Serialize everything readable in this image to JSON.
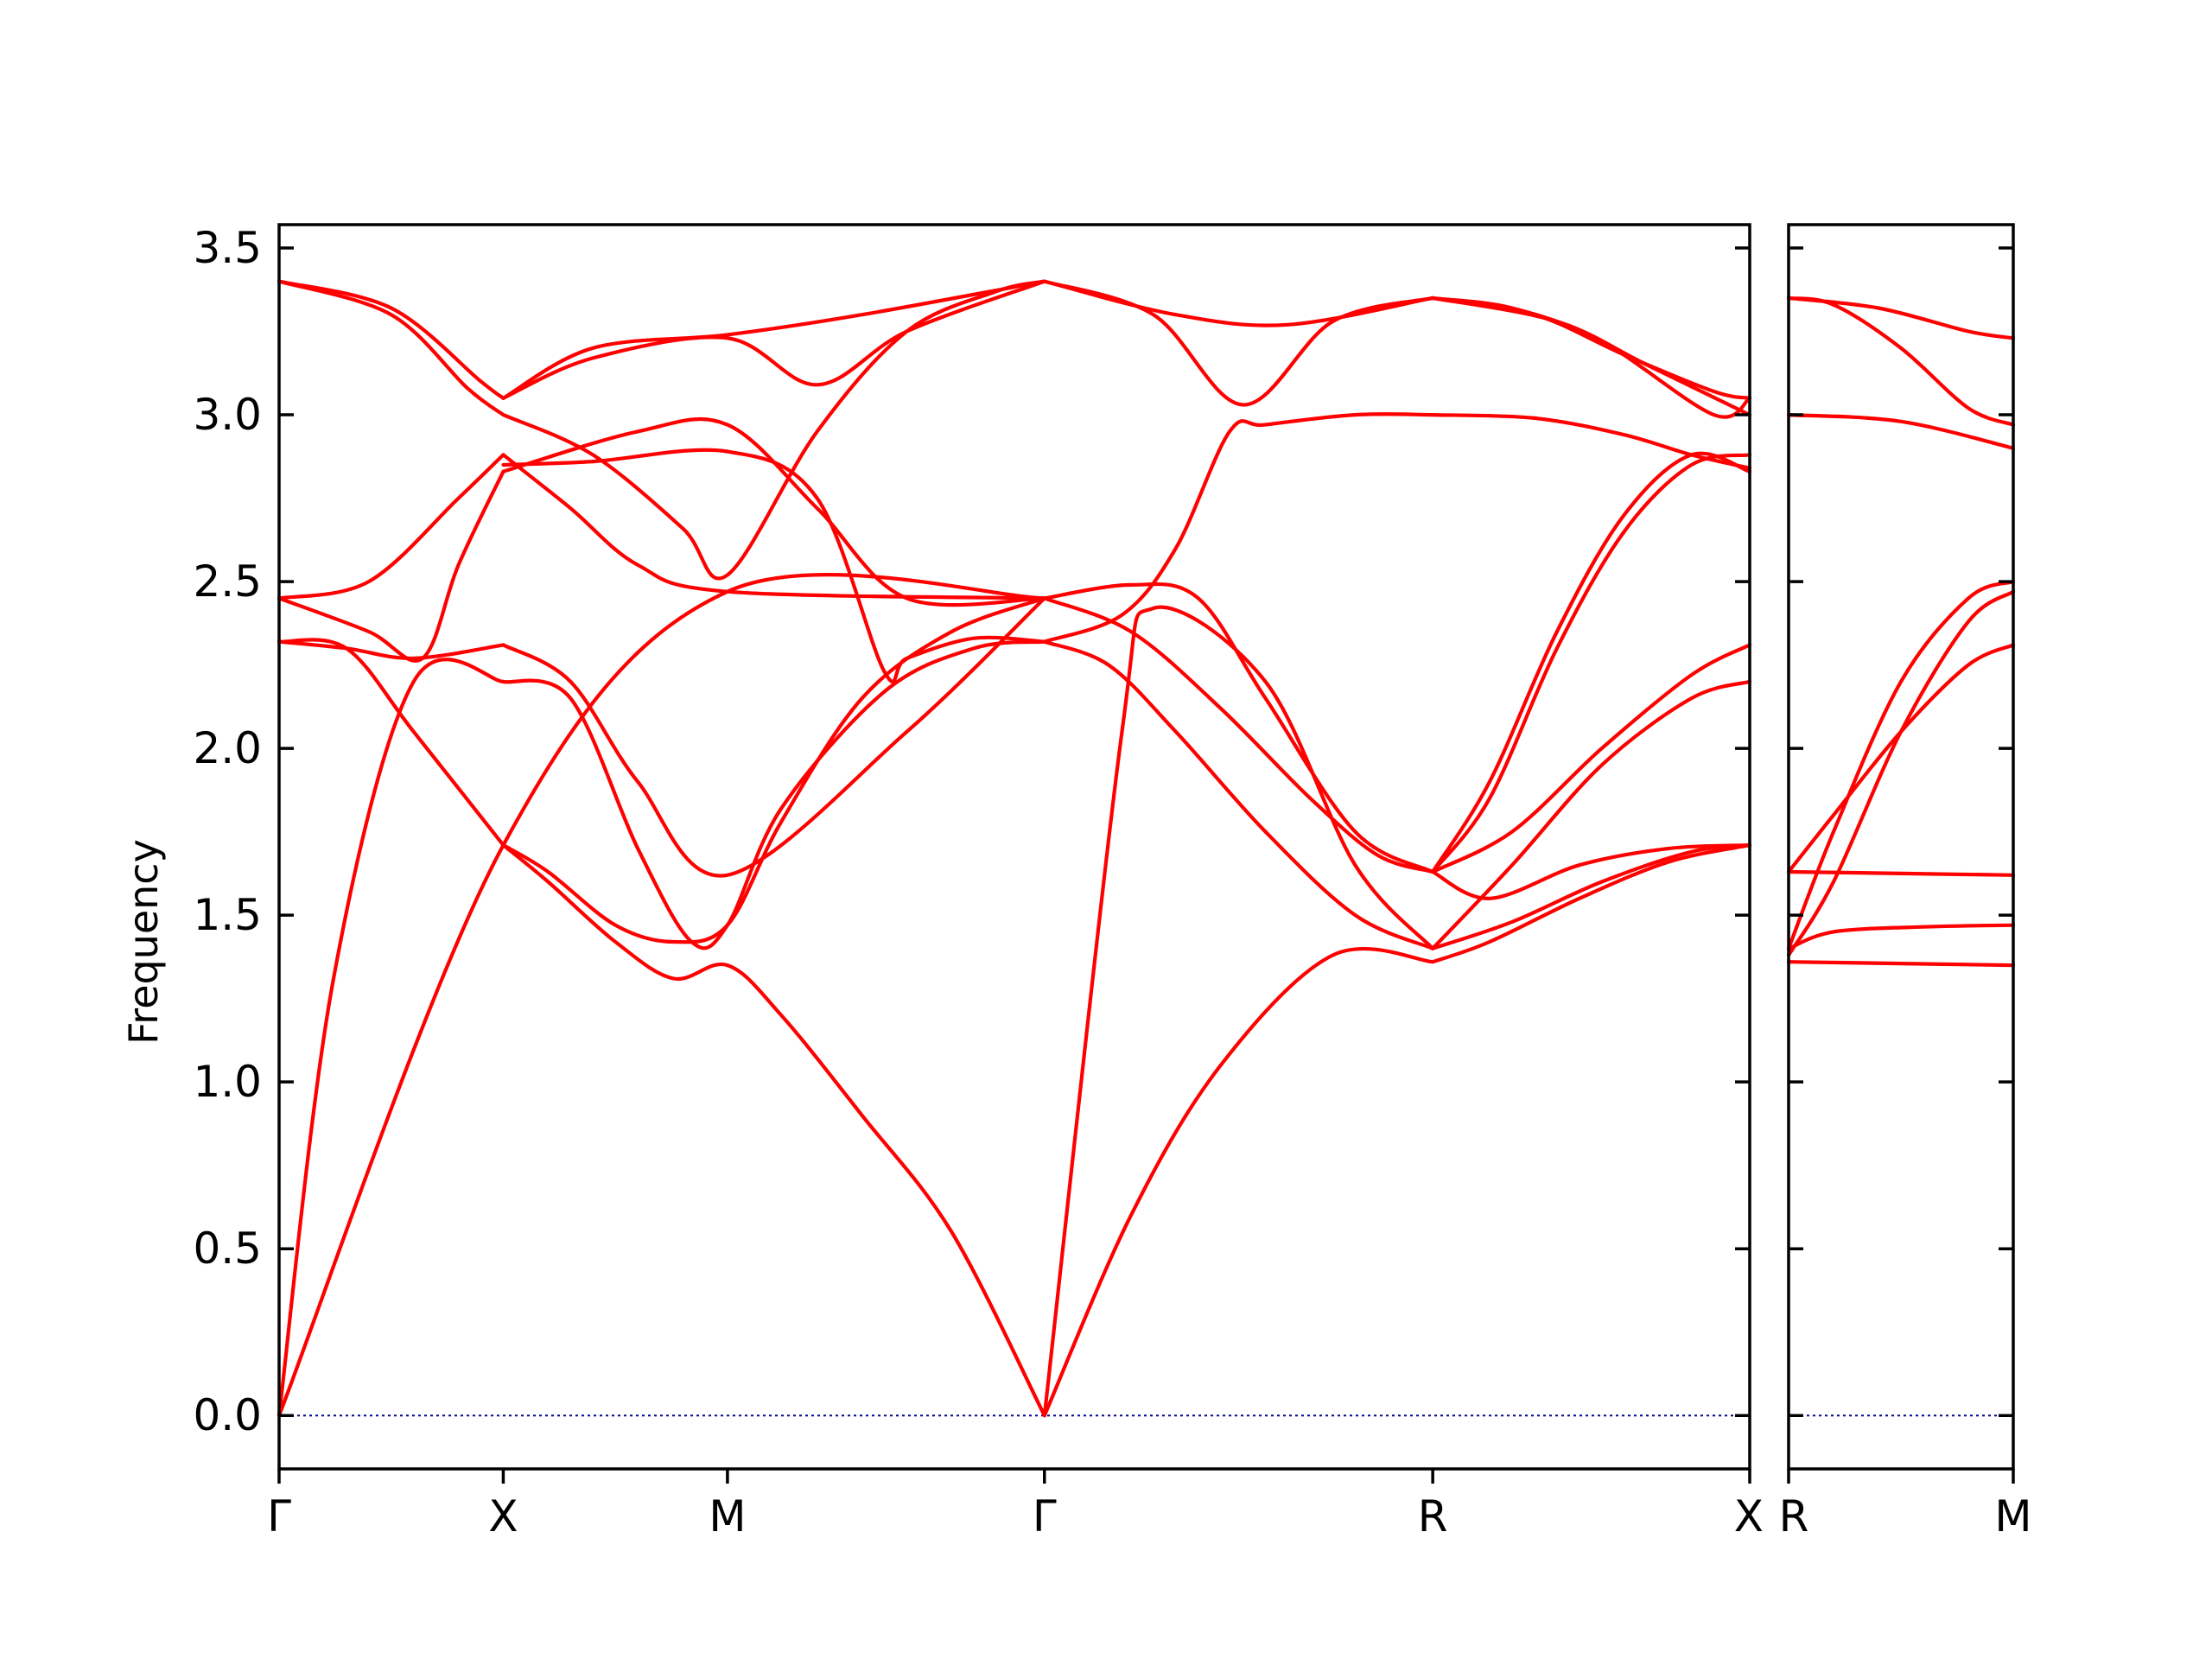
{
  "chart_data": {
    "type": "line",
    "ylabel": "Frequency",
    "ylim": [
      -0.16,
      3.57
    ],
    "yticks": [
      "0.0",
      "0.5",
      "1.0",
      "1.5",
      "2.0",
      "2.5",
      "3.0",
      "3.5"
    ],
    "ytick_values": [
      0.0,
      0.5,
      1.0,
      1.5,
      2.0,
      2.5,
      3.0,
      3.5
    ],
    "line_color": "#ff0000",
    "zero_line_color": "#00008b",
    "panels": [
      {
        "name": "Γ-X-M-Γ-R-X",
        "kpoints": [
          {
            "label": "Γ",
            "x": 0.0
          },
          {
            "label": "X",
            "x": 0.5
          },
          {
            "label": "M",
            "x": 1.0
          },
          {
            "label": "Γ",
            "x": 1.707
          },
          {
            "label": "R",
            "x": 2.573
          },
          {
            "label": "X",
            "x": 3.28
          }
        ],
        "xlim": [
          0.0,
          3.28
        ],
        "bands": [
          {
            "x": [
              0.0,
              0.5,
              1.0,
              1.707
            ],
            "y": [
              0.0,
              1.71,
              2.47,
              2.45
            ]
          },
          {
            "x": [
              0.0,
              0.12,
              0.3,
              0.5
            ],
            "y": [
              0.0,
              1.3,
              2.2,
              2.2
            ]
          },
          {
            "x": [
              0.5,
              0.65,
              0.8,
              0.92,
              1.0,
              1.12,
              1.35,
              1.55,
              1.707
            ],
            "y": [
              2.2,
              2.15,
              1.7,
              1.42,
              1.47,
              1.82,
              2.17,
              2.3,
              2.32
            ]
          },
          {
            "x": [
              0.0,
              0.15,
              0.3,
              0.5
            ],
            "y": [
              2.32,
              2.3,
              2.05,
              1.71
            ]
          },
          {
            "x": [
              0.5,
              0.6,
              0.75,
              0.88,
              1.0,
              1.12,
              1.3,
              1.5,
              1.707
            ],
            "y": [
              1.71,
              1.6,
              1.42,
              1.31,
              1.35,
              1.2,
              0.9,
              0.55,
              0.0
            ]
          },
          {
            "x": [
              0.5,
              0.6,
              0.75,
              0.88,
              1.0,
              1.12,
              1.3,
              1.5,
              1.707
            ],
            "y": [
              1.71,
              1.63,
              1.47,
              1.42,
              1.47,
              1.78,
              2.15,
              2.35,
              2.45
            ]
          },
          {
            "x": [
              0.0,
              0.15,
              0.3,
              0.5
            ],
            "y": [
              2.32,
              2.3,
              2.27,
              2.31
            ]
          },
          {
            "x": [
              0.5,
              0.65,
              0.8,
              1.0,
              1.4,
              1.707
            ],
            "y": [
              2.31,
              2.2,
              1.9,
              1.62,
              2.05,
              2.45
            ]
          },
          {
            "x": [
              0.0,
              0.2,
              0.32,
              0.4,
              0.5
            ],
            "y": [
              2.45,
              2.35,
              2.27,
              2.55,
              2.83
            ]
          },
          {
            "x": [
              0.5,
              0.8,
              1.0,
              1.2,
              1.4,
              1.707
            ],
            "y": [
              2.83,
              2.95,
              2.97,
              2.72,
              2.45,
              2.45
            ]
          },
          {
            "x": [
              0.0,
              0.2,
              0.4,
              0.5
            ],
            "y": [
              2.45,
              2.5,
              2.75,
              2.88
            ]
          },
          {
            "x": [
              0.5,
              0.65,
              0.8,
              1.0,
              1.707
            ],
            "y": [
              2.88,
              2.72,
              2.55,
              2.47,
              2.45
            ]
          },
          {
            "x": [
              0.5,
              0.7,
              1.0,
              1.2,
              1.35,
              1.4,
              1.55,
              1.707
            ],
            "y": [
              2.85,
              2.86,
              2.89,
              2.75,
              2.23,
              2.27,
              2.33,
              2.32
            ]
          },
          {
            "x": [
              0.0,
              0.25,
              0.42,
              0.5
            ],
            "y": [
              3.4,
              3.3,
              3.08,
              3.0
            ]
          },
          {
            "x": [
              0.5,
              0.7,
              0.9,
              1.0,
              1.2,
              1.4,
              1.6,
              1.707
            ],
            "y": [
              3.0,
              2.88,
              2.66,
              2.52,
              2.95,
              3.25,
              3.37,
              3.4
            ]
          },
          {
            "x": [
              0.0,
              0.25,
              0.45,
              0.5
            ],
            "y": [
              3.4,
              3.32,
              3.1,
              3.05
            ]
          },
          {
            "x": [
              0.5,
              0.7,
              1.0,
              1.2,
              1.4,
              1.707
            ],
            "y": [
              3.05,
              3.17,
              3.23,
              3.09,
              3.25,
              3.4
            ]
          },
          {
            "x": [
              0.5,
              0.7,
              1.0,
              1.3,
              1.707
            ],
            "y": [
              3.05,
              3.2,
              3.24,
              3.3,
              3.4
            ]
          },
          {
            "x": [
              1.707,
              1.9,
              2.1,
              2.35,
              2.573
            ],
            "y": [
              0.0,
              0.6,
              1.05,
              1.38,
              1.36
            ]
          },
          {
            "x": [
              1.707,
              1.88,
              1.95,
              2.2,
              2.4,
              2.573
            ],
            "y": [
              0.0,
              2.05,
              2.42,
              2.2,
              1.65,
              1.4
            ]
          },
          {
            "x": [
              1.707,
              1.85,
              2.0,
              2.2,
              2.4,
              2.573
            ],
            "y": [
              2.32,
              2.25,
              2.05,
              1.75,
              1.5,
              1.4
            ]
          },
          {
            "x": [
              1.707,
              1.9,
              2.1,
              2.3,
              2.45,
              2.573
            ],
            "y": [
              2.45,
              2.35,
              2.12,
              1.85,
              1.68,
              1.63
            ]
          },
          {
            "x": [
              1.707,
              1.9,
              2.05,
              2.2,
              2.4,
              2.573
            ],
            "y": [
              2.45,
              2.49,
              2.45,
              2.15,
              1.75,
              1.63
            ]
          },
          {
            "x": [
              1.707,
              1.88,
              2.0,
              2.12,
              2.2,
              2.4,
              2.573
            ],
            "y": [
              2.32,
              2.4,
              2.6,
              2.95,
              2.97,
              3.0,
              3.0
            ]
          },
          {
            "x": [
              1.707,
              1.95,
              2.15,
              2.35,
              2.573
            ],
            "y": [
              3.4,
              3.3,
              3.03,
              3.28,
              3.35
            ]
          },
          {
            "x": [
              1.707,
              2.0,
              2.25,
              2.573
            ],
            "y": [
              3.4,
              3.3,
              3.27,
              3.35
            ]
          },
          {
            "x": [
              2.573,
              2.7,
              2.9,
              3.1,
              3.28
            ],
            "y": [
              1.36,
              1.42,
              1.55,
              1.66,
              1.71
            ]
          },
          {
            "x": [
              2.573,
              2.75,
              2.95,
              3.15,
              3.28
            ],
            "y": [
              1.4,
              1.48,
              1.6,
              1.69,
              1.71
            ]
          },
          {
            "x": [
              2.573,
              2.7,
              2.9,
              3.1,
              3.28
            ],
            "y": [
              1.63,
              1.55,
              1.65,
              1.7,
              1.71
            ]
          },
          {
            "x": [
              2.573,
              2.75,
              2.95,
              3.15,
              3.28
            ],
            "y": [
              1.63,
              1.75,
              2.0,
              2.22,
              2.31
            ]
          },
          {
            "x": [
              2.573,
              2.75,
              2.95,
              3.15,
              3.28
            ],
            "y": [
              1.4,
              1.65,
              1.95,
              2.15,
              2.2
            ]
          },
          {
            "x": [
              2.573,
              2.7,
              2.85,
              3.0,
              3.15,
              3.28
            ],
            "y": [
              1.63,
              1.85,
              2.3,
              2.65,
              2.85,
              2.88
            ]
          },
          {
            "x": [
              2.573,
              2.7,
              2.85,
              3.0,
              3.15,
              3.28
            ],
            "y": [
              1.63,
              1.9,
              2.35,
              2.7,
              2.88,
              2.83
            ]
          },
          {
            "x": [
              2.573,
              2.8,
              3.0,
              3.15,
              3.28
            ],
            "y": [
              3.0,
              2.99,
              2.94,
              2.88,
              2.84
            ]
          },
          {
            "x": [
              2.573,
              2.75,
              2.95,
              3.2,
              3.28
            ],
            "y": [
              3.35,
              3.32,
              3.22,
              3.0,
              3.05
            ]
          },
          {
            "x": [
              2.573,
              2.8,
              3.0,
              3.2,
              3.28
            ],
            "y": [
              3.35,
              3.3,
              3.18,
              3.07,
              3.05
            ]
          },
          {
            "x": [
              2.573,
              2.85,
              3.05,
              3.28
            ],
            "y": [
              3.35,
              3.28,
              3.15,
              3.0
            ]
          }
        ]
      },
      {
        "name": "R-M",
        "kpoints": [
          {
            "label": "R",
            "x": 0.0
          },
          {
            "label": "M",
            "x": 0.5
          }
        ],
        "xlim": [
          0.0,
          0.5
        ],
        "bands": [
          {
            "x": [
              0.0,
              0.25,
              0.5
            ],
            "y": [
              1.36,
              1.355,
              1.35
            ]
          },
          {
            "x": [
              0.0,
              0.1,
              0.3,
              0.5
            ],
            "y": [
              1.4,
              1.45,
              1.465,
              1.47
            ]
          },
          {
            "x": [
              0.0,
              0.25,
              0.5
            ],
            "y": [
              1.63,
              1.625,
              1.62
            ]
          },
          {
            "x": [
              0.0,
              0.1,
              0.25,
              0.4,
              0.5
            ],
            "y": [
              1.63,
              1.8,
              2.05,
              2.25,
              2.31
            ]
          },
          {
            "x": [
              0.0,
              0.1,
              0.25,
              0.4,
              0.5
            ],
            "y": [
              1.38,
              1.6,
              2.05,
              2.38,
              2.47
            ]
          },
          {
            "x": [
              0.0,
              0.1,
              0.25,
              0.4,
              0.5
            ],
            "y": [
              1.4,
              1.75,
              2.2,
              2.45,
              2.5
            ]
          },
          {
            "x": [
              0.0,
              0.25,
              0.5
            ],
            "y": [
              3.0,
              2.98,
              2.9
            ]
          },
          {
            "x": [
              0.0,
              0.1,
              0.25,
              0.4,
              0.5
            ],
            "y": [
              3.35,
              3.33,
              3.2,
              3.02,
              2.97
            ]
          },
          {
            "x": [
              0.0,
              0.2,
              0.4,
              0.5
            ],
            "y": [
              3.35,
              3.32,
              3.25,
              3.23
            ]
          }
        ]
      }
    ]
  }
}
